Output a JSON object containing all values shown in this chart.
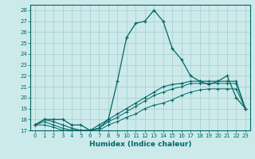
{
  "xlabel": "Humidex (Indice chaleur)",
  "background_color": "#cceaea",
  "grid_color": "#b0d4d4",
  "line_color": "#006666",
  "xlim": [
    -0.5,
    23.5
  ],
  "ylim": [
    17,
    28.5
  ],
  "yticks": [
    17,
    18,
    19,
    20,
    21,
    22,
    23,
    24,
    25,
    26,
    27,
    28
  ],
  "xticks": [
    0,
    1,
    2,
    3,
    4,
    5,
    6,
    7,
    8,
    9,
    10,
    11,
    12,
    13,
    14,
    15,
    16,
    17,
    18,
    19,
    20,
    21,
    22,
    23
  ],
  "series1_x": [
    0,
    1,
    2,
    3,
    4,
    5,
    6,
    7,
    8,
    9,
    10,
    11,
    12,
    13,
    14,
    15,
    16,
    17,
    18,
    19,
    20,
    21,
    22,
    23
  ],
  "series1_y": [
    17.5,
    18.0,
    18.0,
    18.0,
    17.5,
    17.5,
    17.0,
    17.2,
    18.0,
    21.5,
    25.5,
    26.8,
    27.0,
    28.0,
    27.0,
    24.5,
    23.5,
    22.0,
    21.5,
    21.2,
    21.5,
    22.0,
    20.0,
    19.0
  ],
  "series2_x": [
    0,
    1,
    2,
    3,
    4,
    5,
    6,
    7,
    8,
    9,
    10,
    11,
    12,
    13,
    14,
    15,
    16,
    17,
    18,
    19,
    20,
    21,
    22,
    23
  ],
  "series2_y": [
    17.5,
    18.0,
    17.8,
    17.5,
    17.2,
    17.0,
    17.0,
    17.5,
    18.0,
    18.5,
    19.0,
    19.5,
    20.0,
    20.5,
    21.0,
    21.2,
    21.3,
    21.5,
    21.5,
    21.5,
    21.5,
    21.5,
    21.5,
    19.0
  ],
  "series3_x": [
    0,
    1,
    2,
    3,
    4,
    5,
    6,
    7,
    8,
    9,
    10,
    11,
    12,
    13,
    14,
    15,
    16,
    17,
    18,
    19,
    20,
    21,
    22,
    23
  ],
  "series3_y": [
    17.5,
    17.8,
    17.5,
    17.2,
    17.0,
    17.0,
    17.0,
    17.2,
    17.8,
    18.2,
    18.7,
    19.2,
    19.7,
    20.2,
    20.5,
    20.8,
    21.0,
    21.3,
    21.3,
    21.3,
    21.3,
    21.3,
    21.3,
    19.0
  ],
  "series4_x": [
    0,
    1,
    2,
    3,
    4,
    5,
    6,
    7,
    8,
    9,
    10,
    11,
    12,
    13,
    14,
    15,
    16,
    17,
    18,
    19,
    20,
    21,
    22,
    23
  ],
  "series4_y": [
    17.5,
    17.5,
    17.3,
    17.0,
    17.0,
    17.0,
    17.0,
    17.0,
    17.5,
    17.8,
    18.2,
    18.5,
    19.0,
    19.3,
    19.5,
    19.8,
    20.2,
    20.5,
    20.7,
    20.8,
    20.8,
    20.8,
    20.8,
    19.0
  ]
}
